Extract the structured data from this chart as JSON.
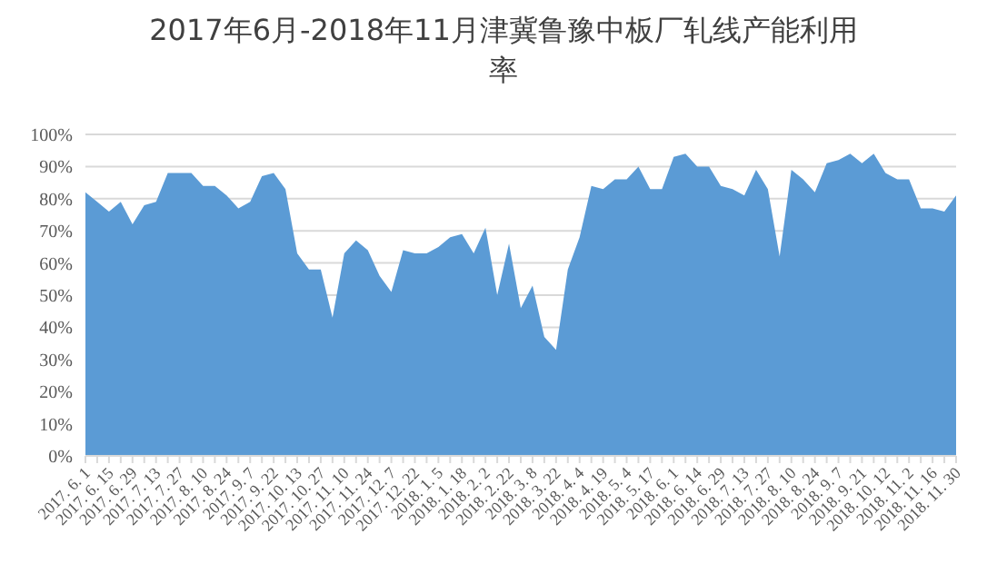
{
  "chart_data": {
    "type": "area",
    "title": "2017年6月-2018年11月津冀鲁豫中板厂轧线产能利用率",
    "categories": [
      "2017. 6. 1",
      null,
      "2017. 6. 15",
      null,
      "2017. 6. 29",
      null,
      "2017. 7. 13",
      null,
      "2017. 7. 27",
      null,
      "2017. 8. 10",
      null,
      "2017. 8. 24",
      null,
      "2017. 9. 7",
      null,
      "2017. 9. 22",
      null,
      "2017. 10. 13",
      null,
      "2017. 10. 27",
      null,
      "2017. 11. 10",
      null,
      "2017. 11. 24",
      null,
      "2017. 12. 7",
      null,
      "2017. 12. 22",
      null,
      "2018. 1. 5",
      null,
      "2018. 1. 18",
      null,
      "2018. 2. 2",
      null,
      "2018. 2. 22",
      null,
      "2018. 3. 8",
      null,
      "2018. 3. 22",
      null,
      "2018. 4. 4",
      null,
      "2018. 4. 19",
      null,
      "2018. 5. 4",
      null,
      "2018. 5. 17",
      null,
      "2018. 6. 1",
      null,
      "2018. 6. 14",
      null,
      "2018. 6. 29",
      null,
      "2018. 7. 13",
      null,
      "2018. 7. 27",
      null,
      "2018. 8. 10",
      null,
      "2018. 8. 24",
      null,
      "2018. 9. 7",
      null,
      "2018. 9. 21",
      null,
      "2018. 10. 12",
      null,
      "2018. 11. 2",
      null,
      "2018. 11. 16",
      null,
      "2018. 11. 30"
    ],
    "series": [
      {
        "color": "#5b9bd5",
        "values": [
          82,
          79,
          76,
          79,
          72,
          78,
          79,
          88,
          88,
          88,
          84,
          84,
          81,
          77,
          79,
          87,
          88,
          83,
          63,
          58,
          58,
          43,
          63,
          67,
          64,
          56,
          51,
          64,
          63,
          63,
          65,
          68,
          69,
          63,
          71,
          50,
          66,
          46,
          53,
          37,
          33,
          58,
          68,
          84,
          83,
          86,
          86,
          90,
          83,
          83,
          93,
          94,
          90,
          90,
          84,
          83,
          81,
          89,
          83,
          62,
          89,
          86,
          82,
          91,
          92,
          94,
          91,
          94,
          88,
          86,
          86,
          77,
          77,
          76,
          81
        ]
      }
    ],
    "ylim": [
      0,
      100
    ],
    "yticks": [
      {
        "value": 0,
        "label": "0%"
      },
      {
        "value": 10,
        "label": "10%"
      },
      {
        "value": 20,
        "label": "20%"
      },
      {
        "value": 30,
        "label": "30%"
      },
      {
        "value": 40,
        "label": "40%"
      },
      {
        "value": 50,
        "label": "50%"
      },
      {
        "value": 60,
        "label": "60%"
      },
      {
        "value": 70,
        "label": "70%"
      },
      {
        "value": 80,
        "label": "80%"
      },
      {
        "value": 90,
        "label": "90%"
      },
      {
        "value": 100,
        "label": "100%"
      }
    ],
    "grid": "y"
  }
}
